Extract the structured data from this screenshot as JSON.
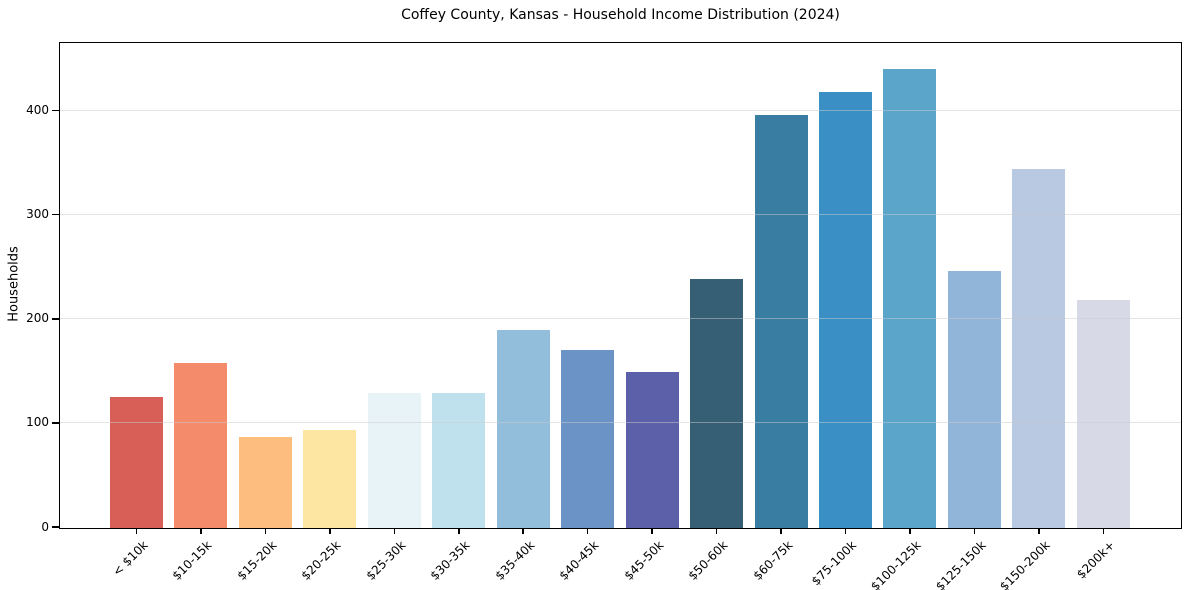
{
  "chart_data": {
    "type": "bar",
    "title": "Coffey County, Kansas - Household Income Distribution (2024)",
    "xlabel": "",
    "ylabel": "Households",
    "categories": [
      "< $10k",
      "$10-15k",
      "$15-20k",
      "$20-25k",
      "$25-30k",
      "$30-35k",
      "$35-40k",
      "$40-45k",
      "$45-50k",
      "$50-60k",
      "$60-75k",
      "$75-100k",
      "$100-125k",
      "$125-150k",
      "$150-200k",
      "$200k+"
    ],
    "values": [
      126,
      159,
      87,
      94,
      130,
      130,
      190,
      171,
      150,
      239,
      397,
      419,
      441,
      247,
      345,
      219
    ],
    "bar_colors": [
      "#d75f57",
      "#f48b6a",
      "#fcbd7e",
      "#fde5a2",
      "#e7f3f6",
      "#bfe0ed",
      "#92bddb",
      "#6b93c6",
      "#5c60a8",
      "#365e75",
      "#397da3",
      "#3a90c4",
      "#5ba4ca",
      "#90b5d9",
      "#b8c9e1",
      "#d7d9e7"
    ],
    "ylim": [
      0,
      465
    ],
    "yticks": [
      0,
      100,
      200,
      300,
      400
    ],
    "grid": "horizontal",
    "grid_color": "#e5e5e5",
    "legend": "none",
    "background": "#ffffff"
  }
}
